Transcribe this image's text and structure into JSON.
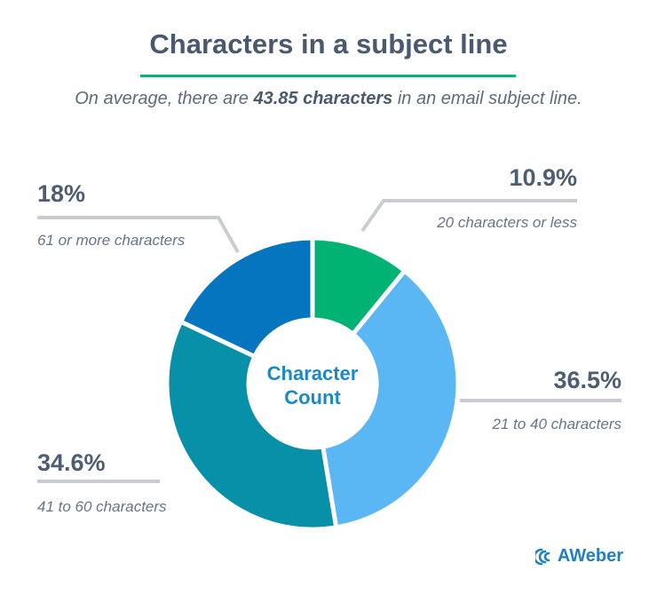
{
  "header": {
    "title": "Characters in a subject line",
    "subtitle_pre": "On average, there are ",
    "subtitle_bold": "43.85 characters",
    "subtitle_post": " in an email subject line."
  },
  "brand": {
    "logo_text": "AWeber",
    "logo_icon": "aweber-logo-icon"
  },
  "chart_data": {
    "type": "pie",
    "variant": "donut",
    "center_label": [
      "Character",
      "Count"
    ],
    "slices": [
      {
        "value": 10.9,
        "label": "10.9%",
        "category": "20 characters or less",
        "color": "#00b373"
      },
      {
        "value": 36.5,
        "label": "36.5%",
        "category": "21 to 40 characters",
        "color": "#5ab7f3"
      },
      {
        "value": 34.6,
        "label": "34.6%",
        "category": "41 to 60 characters",
        "color": "#0790a8"
      },
      {
        "value": 18.0,
        "label": "18%",
        "category": "61 or more characters",
        "color": "#0675c0"
      }
    ],
    "leader_color": "#c9cdd2",
    "separator_color": "#ffffff"
  }
}
